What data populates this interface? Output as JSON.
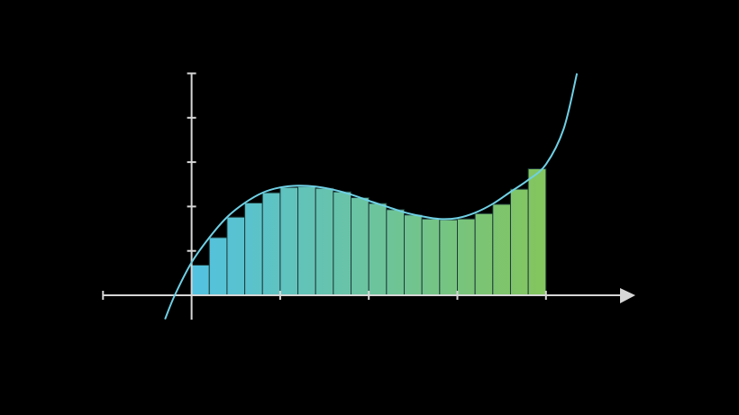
{
  "chart_data": {
    "type": "bar",
    "description_kind": "riemann-sum",
    "xlim": [
      -1,
      5
    ],
    "ylim": [
      -0.55,
      5
    ],
    "x_ticks": [
      -1,
      0,
      1,
      2,
      3,
      4
    ],
    "y_ticks": [
      1,
      2,
      3,
      4,
      5
    ],
    "grid": false,
    "bar_width": 0.2,
    "bar_x_start": [
      0,
      0.2,
      0.4,
      0.6,
      0.8,
      1.0,
      1.2,
      1.4,
      1.6,
      1.8,
      2.0,
      2.2,
      2.4,
      2.6,
      2.8,
      3.0,
      3.2,
      3.4,
      3.6,
      3.8
    ],
    "values": [
      0.68,
      1.3,
      1.76,
      2.08,
      2.31,
      2.43,
      2.45,
      2.41,
      2.33,
      2.2,
      2.07,
      1.93,
      1.81,
      1.72,
      1.7,
      1.72,
      1.84,
      2.05,
      2.39,
      2.85
    ],
    "curve": {
      "x": [
        -0.3,
        -0.19,
        0,
        0.2,
        0.4,
        0.6,
        0.8,
        1.0,
        1.2,
        1.4,
        1.6,
        1.8,
        2.0,
        2.2,
        2.4,
        2.6,
        2.8,
        3.0,
        3.2,
        3.4,
        3.6,
        3.8,
        4.0,
        4.2,
        4.35
      ],
      "y": [
        -0.54,
        0,
        0.74,
        1.3,
        1.76,
        2.08,
        2.31,
        2.43,
        2.47,
        2.45,
        2.38,
        2.27,
        2.13,
        2.0,
        1.87,
        1.78,
        1.72,
        1.74,
        1.86,
        2.06,
        2.33,
        2.6,
        2.95,
        3.75,
        5.0
      ]
    },
    "colors": {
      "background": "#000000",
      "axis": "#d6d6d6",
      "curve": "#6fd0e4",
      "bar_start": "#52c2e2",
      "bar_end": "#84c55c",
      "bar_edge": "#1e3a3a"
    }
  }
}
